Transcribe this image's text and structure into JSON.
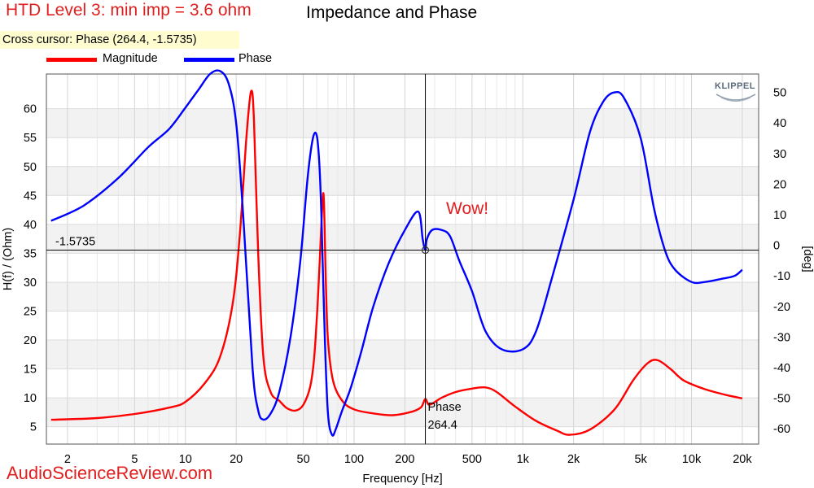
{
  "overlay": {
    "title": "HTD Level 3: min imp = 3.6 ohm",
    "cursor_readout": "Cross cursor: Phase (264.4, -1.5735)",
    "annotation": "Wow!",
    "watermark": "AudioScienceReview.com",
    "logo_text": "KLIPPEL"
  },
  "chart_data": {
    "type": "line",
    "title": "Impedance and Phase",
    "xlabel": "Frequency [Hz]",
    "ylabel": "H(f) / (Ohm)",
    "y2label": "[deg]",
    "xscale": "log",
    "xlim": [
      1.5,
      25000
    ],
    "ylim": [
      2,
      66
    ],
    "y2lim": [
      -65,
      56
    ],
    "x_ticks": [
      2,
      5,
      10,
      20,
      50,
      100,
      200,
      500,
      1000,
      2000,
      5000,
      10000,
      20000
    ],
    "x_tick_labels": [
      "2",
      "5",
      "10",
      "20",
      "50",
      "100",
      "200",
      "500",
      "1k",
      "2k",
      "5k",
      "10k",
      "20k"
    ],
    "y_ticks": [
      5,
      10,
      15,
      20,
      25,
      30,
      35,
      40,
      45,
      50,
      55,
      60
    ],
    "y2_ticks": [
      -60,
      -50,
      -40,
      -30,
      -20,
      -10,
      0,
      10,
      20,
      30,
      40,
      50
    ],
    "grid": true,
    "legend_position": "top-left",
    "series": [
      {
        "name": "Magnitude",
        "axis": "left",
        "color": "#ff0000",
        "x": [
          1.6,
          3,
          5,
          8,
          10,
          13,
          16,
          19,
          21,
          23,
          24.5,
          25.5,
          27,
          29,
          32,
          36,
          40,
          45,
          50,
          55,
          58,
          61,
          64,
          66,
          68,
          70,
          75,
          85,
          100,
          130,
          170,
          220,
          250,
          264.4,
          280,
          330,
          400,
          500,
          600,
          700,
          900,
          1200,
          1600,
          1900,
          2500,
          3500,
          4500,
          5500,
          6300,
          7500,
          9000,
          12000,
          16000,
          20000
        ],
        "y": [
          6.2,
          6.5,
          7.2,
          8.3,
          9.3,
          12.5,
          17,
          26,
          38,
          55,
          63,
          58,
          35,
          17,
          11,
          9.5,
          8.2,
          7.8,
          8.8,
          12,
          17,
          27,
          40,
          45,
          30,
          20,
          13,
          9.5,
          8,
          7.3,
          7,
          7.6,
          8.4,
          9.8,
          8.8,
          10,
          11,
          11.6,
          11.8,
          11,
          8.5,
          6,
          4.3,
          3.6,
          4.5,
          8,
          13,
          16,
          16.5,
          15,
          13,
          11.5,
          10.5,
          9.9
        ]
      },
      {
        "name": "Phase",
        "axis": "right",
        "color": "#0000ff",
        "x": [
          1.6,
          2.5,
          4,
          6,
          8,
          10,
          12,
          14,
          16,
          18,
          20,
          22,
          25,
          27,
          29,
          32,
          36,
          42,
          48,
          53,
          57,
          60,
          62,
          64,
          67,
          70,
          74,
          78,
          85,
          95,
          110,
          130,
          160,
          200,
          240,
          255,
          264.4,
          270,
          290,
          330,
          370,
          420,
          500,
          600,
          750,
          1000,
          1200,
          1500,
          2000,
          2500,
          3000,
          3500,
          4000,
          5000,
          6000,
          7000,
          8000,
          10000,
          12000,
          15000,
          18000,
          20000
        ],
        "y": [
          8,
          13,
          22,
          32,
          38,
          45,
          51,
          56,
          57,
          53,
          40,
          10,
          -40,
          -54,
          -57,
          -55,
          -48,
          -30,
          -5,
          22,
          35,
          36,
          28,
          10,
          -30,
          -55,
          -62,
          -60,
          -54,
          -47,
          -35,
          -20,
          -6,
          5,
          11,
          2,
          -1.5735,
          2,
          5,
          5,
          3,
          -5,
          -15,
          -28,
          -34,
          -34,
          -28,
          -10,
          15,
          37,
          47,
          50,
          48,
          35,
          12,
          -2,
          -8,
          -12,
          -12,
          -11,
          -10,
          -8
        ]
      }
    ]
  }
}
